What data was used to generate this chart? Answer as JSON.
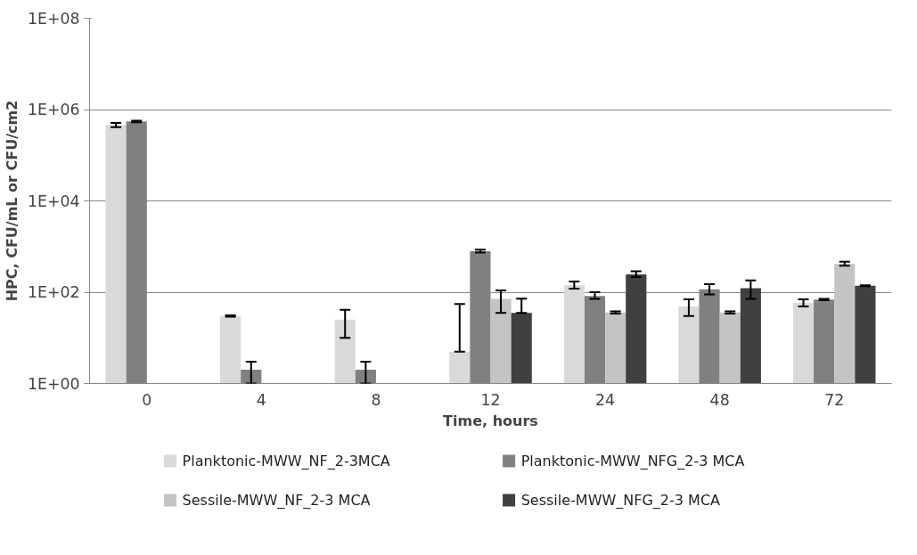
{
  "chart_data": {
    "type": "bar",
    "xlabel": "Time, hours",
    "ylabel": "HPC, CFU/mL or CFU/cm2",
    "categories": [
      "0",
      "4",
      "8",
      "12",
      "24",
      "48",
      "72"
    ],
    "log": true,
    "ylim": [
      1,
      100000000
    ],
    "yticks": [
      {
        "value": 1,
        "label": "1E+00"
      },
      {
        "value": 100,
        "label": "1E+02"
      },
      {
        "value": 10000,
        "label": "1E+04"
      },
      {
        "value": 1000000,
        "label": "1E+06"
      },
      {
        "value": 100000000,
        "label": "1E+08"
      }
    ],
    "grid": "y",
    "legend": "bottom",
    "series": [
      {
        "name": "Planktonic-MWW_NF_2-3MCA",
        "color": "#d9d9d9",
        "values": [
          460000,
          30,
          25,
          5,
          141,
          49,
          58
        ],
        "errors": [
          [
            410000,
            510000
          ],
          [
            29,
            31
          ],
          [
            10,
            41
          ],
          [
            5,
            55
          ],
          [
            120,
            171
          ],
          [
            30,
            70
          ],
          [
            49,
            70
          ]
        ]
      },
      {
        "name": "Planktonic-MWW_NFG_2-3 MCA",
        "color": "#808080",
        "values": [
          550000,
          2,
          2,
          790,
          83,
          116,
          69
        ],
        "errors": [
          [
            530000,
            570000
          ],
          [
            1,
            3
          ],
          [
            1,
            3
          ],
          [
            740,
            850
          ],
          [
            71,
            100
          ],
          [
            89,
            150
          ],
          [
            67,
            71
          ]
        ]
      },
      {
        "name": "Sessile-MWW_NF_2-3 MCA",
        "color": "#c4c4c4",
        "values": [
          null,
          null,
          null,
          71,
          36,
          36,
          416
        ],
        "errors": [
          null,
          null,
          null,
          [
            35,
            109
          ],
          [
            34,
            38
          ],
          [
            34,
            38
          ],
          [
            382,
            466
          ]
        ]
      },
      {
        "name": "Sessile-MWW_NFG_2-3 MCA",
        "color": "#404040",
        "values": [
          null,
          null,
          null,
          35,
          246,
          122,
          139
        ],
        "errors": [
          null,
          null,
          null,
          [
            35,
            72
          ],
          [
            215,
            288
          ],
          [
            71,
            182
          ],
          [
            136,
            142
          ]
        ]
      }
    ]
  }
}
